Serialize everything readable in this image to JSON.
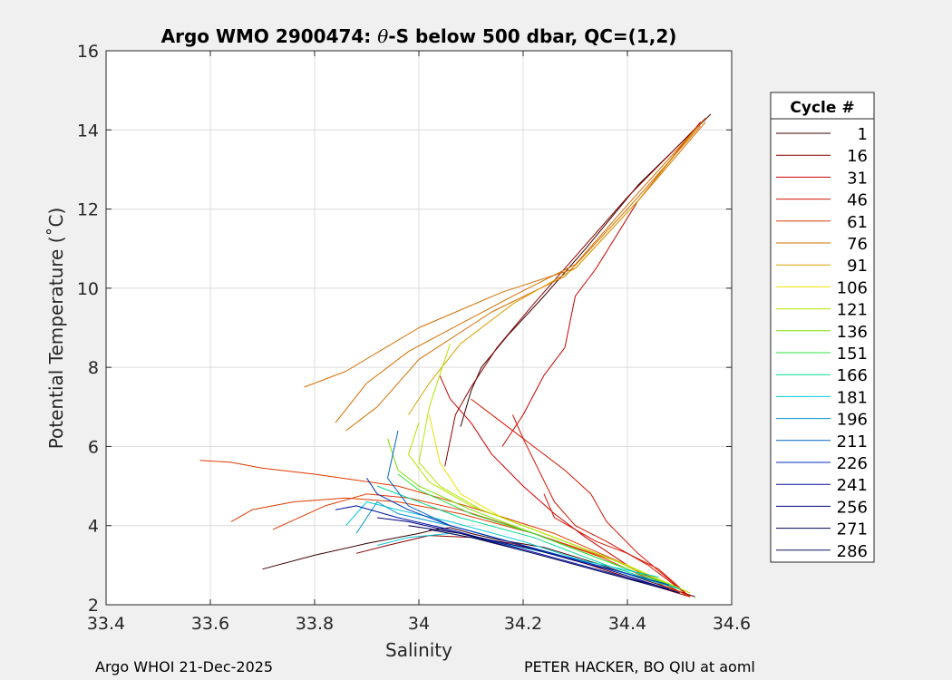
{
  "chart_data": {
    "type": "line",
    "title_parts": [
      "Argo WMO 2900474: ",
      "θ",
      "-S below 500 dbar,  QC=(1,2)"
    ],
    "xlabel": "Salinity",
    "ylabel": "Potential Temperature (˚C)",
    "xlim": [
      33.4,
      34.6
    ],
    "ylim": [
      2,
      16
    ],
    "xticks": [
      33.4,
      33.6,
      33.8,
      34,
      34.2,
      34.4,
      34.6
    ],
    "xtick_labels": [
      "33.4",
      "33.6",
      "33.8",
      "34",
      "34.2",
      "34.4",
      "34.6"
    ],
    "yticks": [
      2,
      4,
      6,
      8,
      10,
      12,
      14,
      16
    ],
    "ytick_labels": [
      "2",
      "4",
      "6",
      "8",
      "10",
      "12",
      "14",
      "16"
    ],
    "grid": true,
    "legend": {
      "title": "Cycle #",
      "placement": "outside-right",
      "entries": [
        {
          "label": "1",
          "color": "#3a0000"
        },
        {
          "label": "16",
          "color": "#8b0000"
        },
        {
          "label": "31",
          "color": "#c80000"
        },
        {
          "label": "46",
          "color": "#d41400"
        },
        {
          "label": "61",
          "color": "#e03a00"
        },
        {
          "label": "76",
          "color": "#d46e00"
        },
        {
          "label": "91",
          "color": "#d8a000"
        },
        {
          "label": "106",
          "color": "#f0e000"
        },
        {
          "label": "121",
          "color": "#b4e600"
        },
        {
          "label": "136",
          "color": "#7ee000"
        },
        {
          "label": "151",
          "color": "#30e040"
        },
        {
          "label": "166",
          "color": "#00d890"
        },
        {
          "label": "181",
          "color": "#00c8d8"
        },
        {
          "label": "196",
          "color": "#0094d0"
        },
        {
          "label": "211",
          "color": "#0064c0"
        },
        {
          "label": "226",
          "color": "#0030b4"
        },
        {
          "label": "241",
          "color": "#0010a0"
        },
        {
          "label": "256",
          "color": "#000080"
        },
        {
          "label": "271",
          "color": "#000050"
        },
        {
          "label": "286",
          "color": "#101060"
        }
      ]
    },
    "series": [
      {
        "color": "#3a0000",
        "x": [
          34.53,
          34.44,
          34.34,
          34.24,
          34.15,
          34.1,
          34.06,
          34.03,
          34.0,
          33.9,
          33.8,
          33.7
        ],
        "y": [
          2.2,
          2.6,
          3.05,
          3.45,
          3.65,
          3.8,
          3.95,
          3.9,
          3.8,
          3.55,
          3.25,
          2.9
        ]
      },
      {
        "color": "#3a0000",
        "x": [
          34.56,
          34.42,
          34.32,
          34.24,
          34.17,
          34.12,
          34.1,
          34.08
        ],
        "y": [
          14.4,
          12.6,
          11.0,
          9.8,
          8.8,
          8.0,
          7.4,
          6.5
        ]
      },
      {
        "color": "#8b0000",
        "x": [
          34.55,
          34.4,
          34.3,
          34.22,
          34.15,
          34.1,
          34.07,
          34.05
        ],
        "y": [
          14.3,
          12.3,
          10.8,
          9.6,
          8.5,
          7.5,
          6.8,
          5.5
        ]
      },
      {
        "color": "#8b0000",
        "x": [
          34.52,
          34.42,
          34.33,
          34.25,
          34.18,
          34.1,
          34.02,
          33.94,
          33.88
        ],
        "y": [
          2.2,
          2.6,
          3.0,
          3.3,
          3.55,
          3.7,
          3.75,
          3.5,
          3.3
        ]
      },
      {
        "color": "#c80000",
        "x": [
          34.52,
          34.4,
          34.32,
          34.26,
          34.2,
          34.14,
          34.1,
          34.06,
          34.04
        ],
        "y": [
          2.2,
          3.0,
          3.7,
          4.3,
          5.0,
          5.8,
          6.6,
          7.2,
          7.8
        ]
      },
      {
        "color": "#c80000",
        "x": [
          34.54,
          34.42,
          34.34,
          34.3,
          34.28,
          34.24,
          34.2,
          34.16
        ],
        "y": [
          14.2,
          12.2,
          10.5,
          9.8,
          8.5,
          7.8,
          6.8,
          6.0
        ]
      },
      {
        "color": "#d41400",
        "x": [
          34.52,
          34.44,
          34.36,
          34.3,
          34.26,
          34.23,
          34.2,
          34.18
        ],
        "y": [
          2.2,
          3.0,
          3.6,
          4.0,
          4.6,
          5.4,
          6.2,
          6.8
        ]
      },
      {
        "color": "#d41400",
        "x": [
          34.52,
          34.42,
          34.36,
          34.33,
          34.28,
          34.22,
          34.16,
          34.1
        ],
        "y": [
          2.2,
          3.3,
          4.1,
          4.8,
          5.4,
          6.0,
          6.6,
          7.2
        ]
      },
      {
        "color": "#d41400",
        "x": [
          34.52,
          34.46,
          34.4,
          34.34,
          34.3,
          34.26,
          34.24
        ],
        "y": [
          2.2,
          2.9,
          3.3,
          3.6,
          3.9,
          4.2,
          4.8
        ]
      },
      {
        "color": "#e03a00",
        "x": [
          34.52,
          34.4,
          34.26,
          34.14,
          34.04,
          33.96,
          33.8,
          33.7,
          33.64,
          33.58
        ],
        "y": [
          2.2,
          3.0,
          3.8,
          4.3,
          4.7,
          5.0,
          5.3,
          5.45,
          5.6,
          5.65
        ]
      },
      {
        "color": "#e03a00",
        "x": [
          34.52,
          34.38,
          34.22,
          34.08,
          33.96,
          33.86,
          33.76,
          33.68,
          33.64
        ],
        "y": [
          2.2,
          3.1,
          3.8,
          4.3,
          4.6,
          4.7,
          4.6,
          4.4,
          4.1
        ]
      },
      {
        "color": "#e03a00",
        "x": [
          34.5,
          34.35,
          34.2,
          34.08,
          33.98,
          33.9,
          33.82,
          33.72
        ],
        "y": [
          2.3,
          3.2,
          3.9,
          4.4,
          4.7,
          4.8,
          4.5,
          3.9
        ]
      },
      {
        "color": "#d46e00",
        "x": [
          34.55,
          34.42,
          34.3,
          34.18,
          34.08,
          33.98,
          33.9,
          33.84
        ],
        "y": [
          14.3,
          12.4,
          10.6,
          9.8,
          9.1,
          8.4,
          7.6,
          6.6
        ]
      },
      {
        "color": "#d46e00",
        "x": [
          34.55,
          34.42,
          34.3,
          34.16,
          34.0,
          33.86,
          33.78
        ],
        "y": [
          14.2,
          12.2,
          10.5,
          9.9,
          9.0,
          7.9,
          7.5
        ]
      },
      {
        "color": "#d46e00",
        "x": [
          34.54,
          34.4,
          34.28,
          34.14,
          34.0,
          33.92,
          33.86
        ],
        "y": [
          14.1,
          12.0,
          10.3,
          9.4,
          8.2,
          7.0,
          6.4
        ]
      },
      {
        "color": "#d8a000",
        "x": [
          34.53,
          34.42,
          34.3,
          34.18,
          34.08,
          34.02,
          33.98
        ],
        "y": [
          14.0,
          12.2,
          10.5,
          9.6,
          8.6,
          7.6,
          6.8
        ]
      },
      {
        "color": "#f0e000",
        "x": [
          34.52,
          34.4,
          34.28,
          34.16,
          34.08,
          34.04,
          34.02
        ],
        "y": [
          2.3,
          3.0,
          3.6,
          4.2,
          4.8,
          5.6,
          6.8
        ]
      },
      {
        "color": "#b4e600",
        "x": [
          34.52,
          34.38,
          34.24,
          34.12,
          34.04,
          34.0,
          34.02,
          34.06
        ],
        "y": [
          2.3,
          3.1,
          3.8,
          4.4,
          5.0,
          5.6,
          7.0,
          8.6
        ]
      },
      {
        "color": "#b4e600",
        "x": [
          34.5,
          34.36,
          34.22,
          34.1,
          34.02,
          33.98,
          34.0
        ],
        "y": [
          2.4,
          3.2,
          3.9,
          4.5,
          5.1,
          5.8,
          6.6
        ]
      },
      {
        "color": "#7ee000",
        "x": [
          34.5,
          34.36,
          34.22,
          34.1,
          34.0,
          33.96,
          33.94
        ],
        "y": [
          2.4,
          3.1,
          3.8,
          4.4,
          5.0,
          5.4,
          6.2
        ]
      },
      {
        "color": "#30e040",
        "x": [
          34.5,
          34.36,
          34.22,
          34.1,
          34.0,
          33.96
        ],
        "y": [
          2.4,
          3.1,
          3.8,
          4.3,
          4.9,
          5.3
        ]
      },
      {
        "color": "#00d890",
        "x": [
          34.5,
          34.36,
          34.22,
          34.08,
          33.98,
          33.92
        ],
        "y": [
          2.4,
          3.0,
          3.7,
          4.2,
          4.7,
          5.0
        ]
      },
      {
        "color": "#00c8d8",
        "x": [
          34.5,
          34.34,
          34.2,
          34.06,
          33.96,
          33.9,
          33.86
        ],
        "y": [
          2.4,
          3.0,
          3.6,
          4.1,
          4.4,
          4.6,
          4.0
        ]
      },
      {
        "color": "#00c8d8",
        "x": [
          34.46,
          34.32,
          34.18,
          34.06,
          33.98,
          33.92
        ],
        "y": [
          2.7,
          3.1,
          3.5,
          3.8,
          3.7,
          3.5
        ]
      },
      {
        "color": "#0094d0",
        "x": [
          34.48,
          34.34,
          34.2,
          34.06,
          33.96,
          33.92,
          33.88
        ],
        "y": [
          2.5,
          3.0,
          3.5,
          4.0,
          4.3,
          4.6,
          3.8
        ]
      },
      {
        "color": "#0064c0",
        "x": [
          34.48,
          34.34,
          34.2,
          34.06,
          33.98,
          33.94,
          33.96
        ],
        "y": [
          2.5,
          3.0,
          3.5,
          4.0,
          4.5,
          5.2,
          6.4
        ]
      },
      {
        "color": "#0030b4",
        "x": [
          34.48,
          34.34,
          34.2,
          34.06,
          33.98,
          33.92,
          33.9
        ],
        "y": [
          2.5,
          3.0,
          3.5,
          4.0,
          4.4,
          4.8,
          5.2
        ]
      },
      {
        "color": "#0010a0",
        "x": [
          34.48,
          34.34,
          34.2,
          34.06,
          33.96,
          33.88,
          33.84
        ],
        "y": [
          2.4,
          2.9,
          3.4,
          3.9,
          4.2,
          4.5,
          4.4
        ]
      },
      {
        "color": "#000080",
        "x": [
          34.5,
          34.36,
          34.22,
          34.08,
          33.98,
          33.92
        ],
        "y": [
          2.3,
          2.9,
          3.4,
          3.8,
          4.1,
          4.2
        ]
      },
      {
        "color": "#000050",
        "x": [
          34.5,
          34.36,
          34.22,
          34.08,
          33.98
        ],
        "y": [
          2.3,
          2.8,
          3.3,
          3.8,
          4.0
        ]
      },
      {
        "color": "#101060",
        "x": [
          34.5,
          34.36,
          34.22,
          34.1,
          34.02
        ],
        "y": [
          2.3,
          2.8,
          3.3,
          3.7,
          3.9
        ]
      }
    ]
  },
  "footer": {
    "left": "Argo WHOI 21-Dec-2025",
    "right": "PETER HACKER, BO QIU at aoml"
  }
}
